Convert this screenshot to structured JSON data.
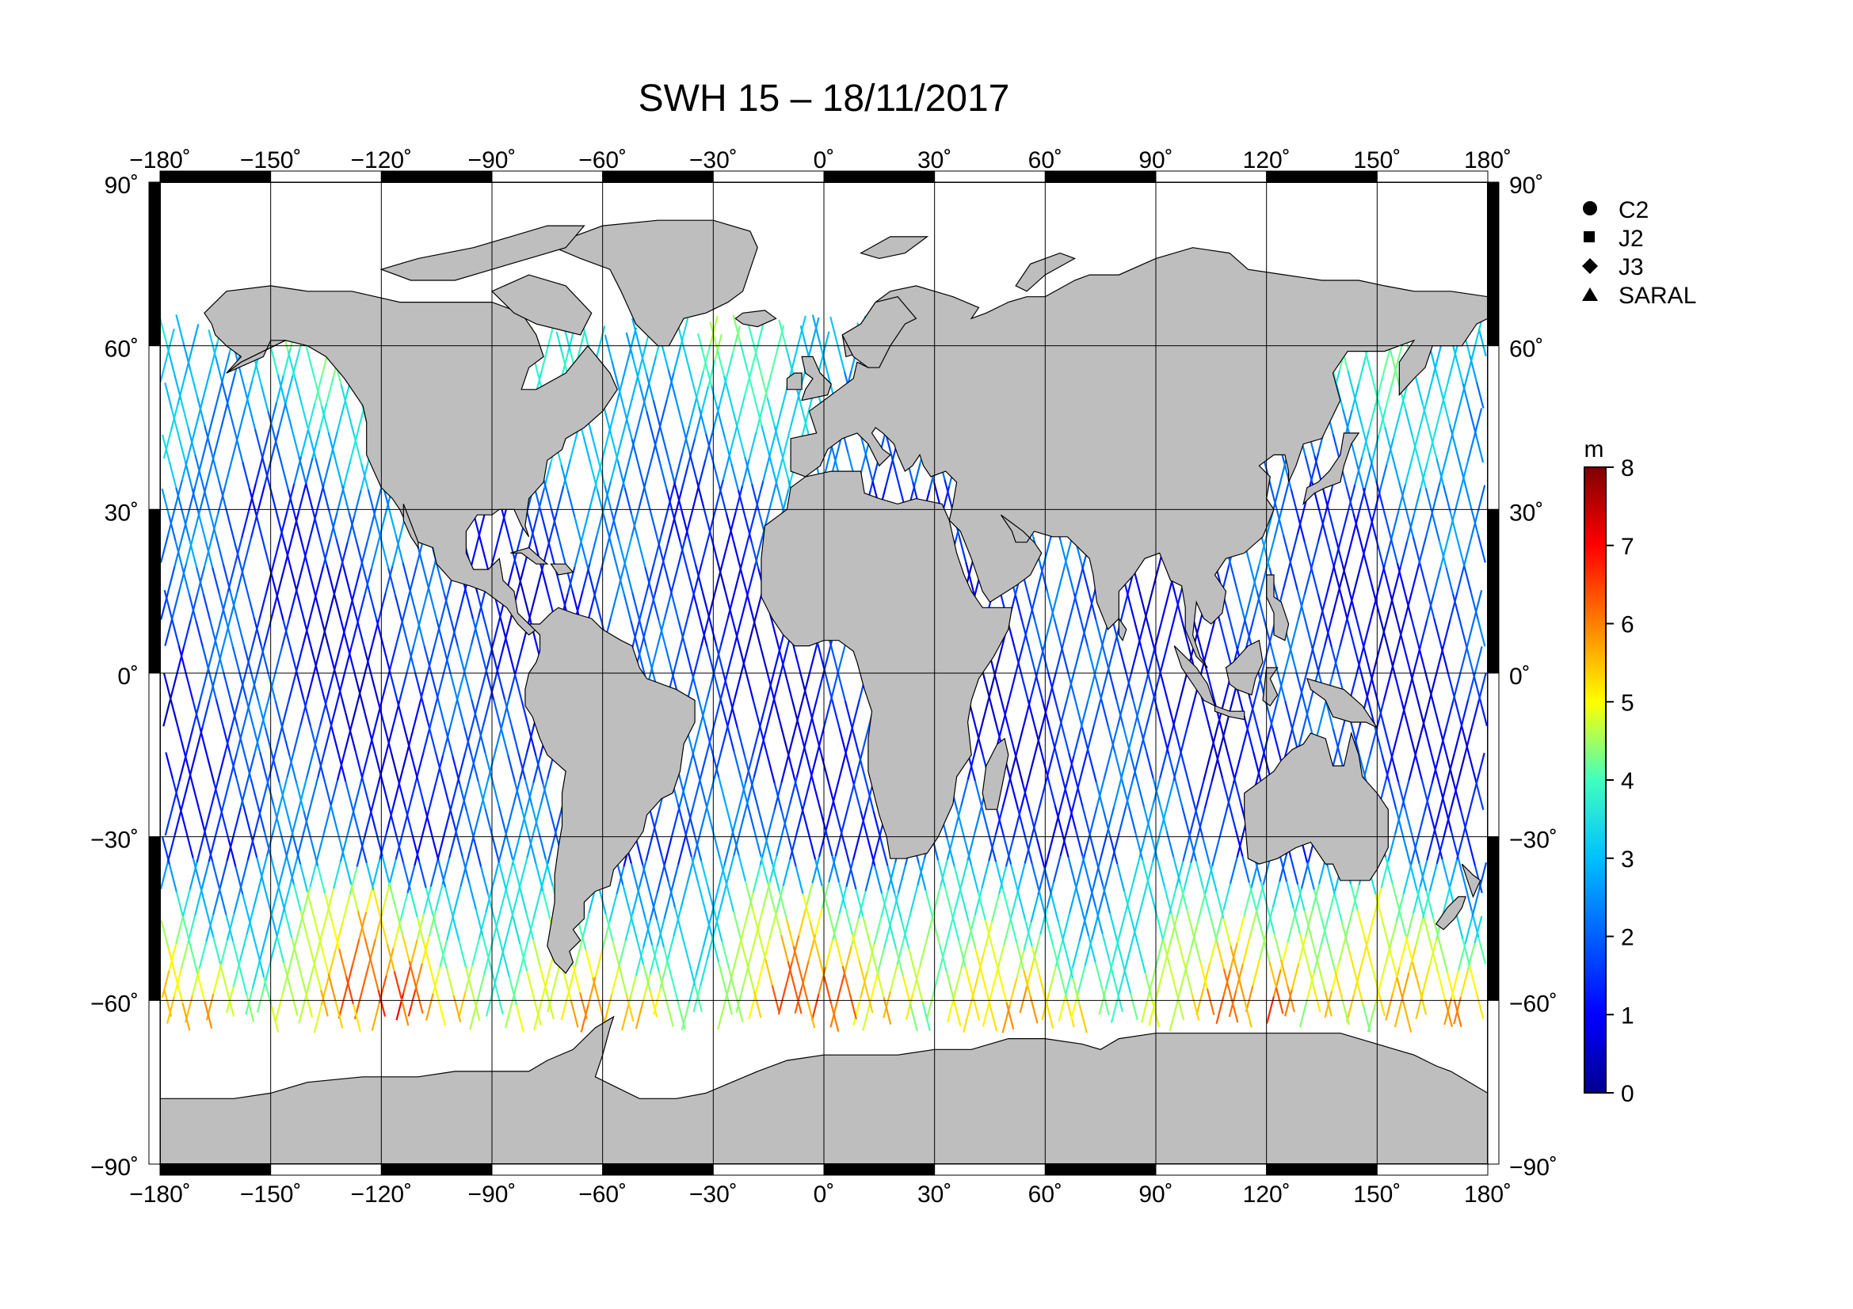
{
  "title": "SWH 15 – 18/11/2017",
  "map": {
    "lon_range": [
      -180,
      180
    ],
    "lat_range": [
      -90,
      90
    ],
    "grid": true,
    "lon_ticks": [
      "−180˚",
      "−150˚",
      "−120˚",
      "−90˚",
      "−60˚",
      "−30˚",
      "0˚",
      "30˚",
      "60˚",
      "90˚",
      "120˚",
      "150˚",
      "180˚"
    ],
    "lat_ticks": [
      "90˚",
      "60˚",
      "30˚",
      "0˚",
      "−30˚",
      "−60˚",
      "−90˚"
    ],
    "land_color": "#bebebe",
    "ocean_color": "#ffffff"
  },
  "legend": {
    "satellites": [
      {
        "label": "C2",
        "symbol": "circle"
      },
      {
        "label": "J2",
        "symbol": "square"
      },
      {
        "label": "J3",
        "symbol": "diamond"
      },
      {
        "label": "SARAL",
        "symbol": "triangle"
      }
    ]
  },
  "colorbar": {
    "unit": "m",
    "min": 0,
    "max": 8,
    "ticks": [
      "8",
      "7",
      "6",
      "5",
      "4",
      "3",
      "2",
      "1",
      "0"
    ],
    "colors": [
      "#00008f",
      "#0000ff",
      "#0080ff",
      "#00ffff",
      "#80ff80",
      "#ffff00",
      "#ff8000",
      "#ff0000",
      "#800000"
    ]
  }
}
